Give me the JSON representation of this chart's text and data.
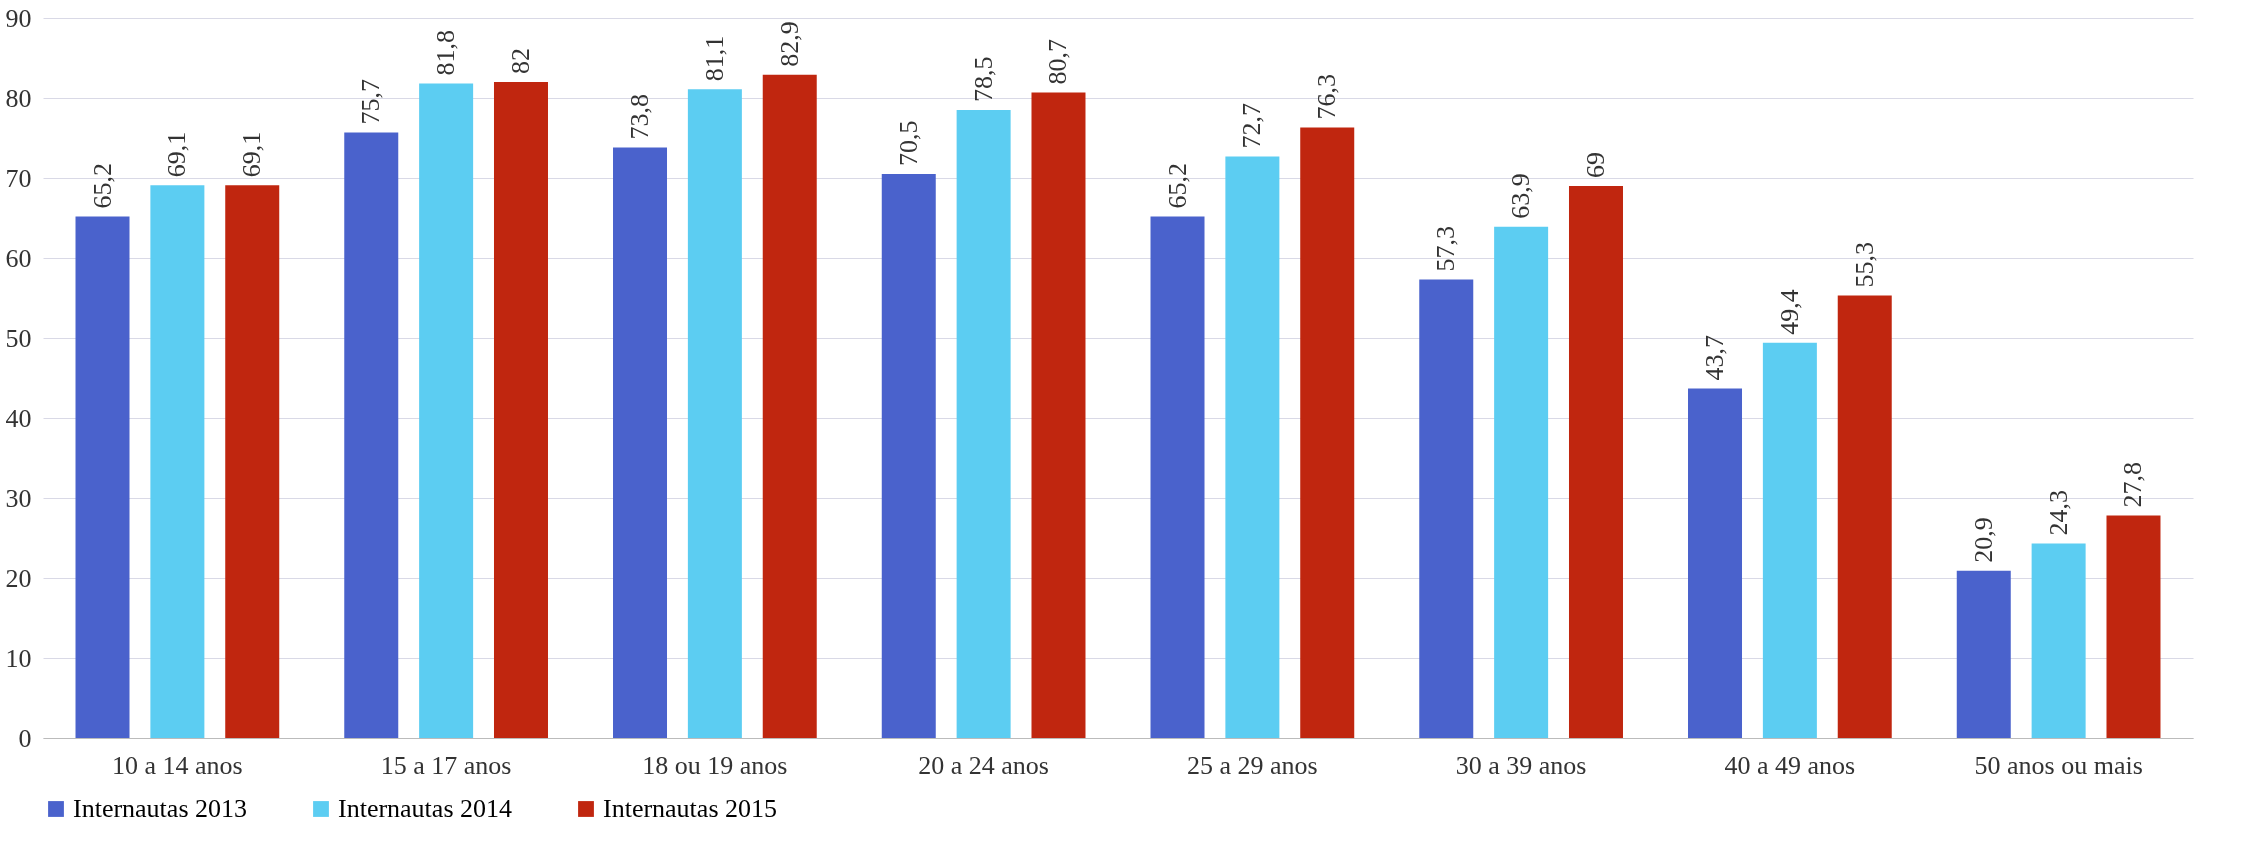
{
  "chart_data": {
    "type": "bar",
    "categories": [
      "10 a 14 anos",
      "15 a 17 anos",
      "18 ou 19 anos",
      "20 a 24 anos",
      "25 a 29 anos",
      "30 a 39 anos",
      "40 a 49 anos",
      "50 anos ou mais"
    ],
    "series": [
      {
        "name": "Internautas 2013",
        "color": "#4a62cc",
        "values": [
          65.2,
          75.7,
          73.8,
          70.5,
          65.2,
          57.3,
          43.7,
          20.9
        ],
        "value_labels": [
          "65,2",
          "75,7",
          "73,8",
          "70,5",
          "65,2",
          "57,3",
          "43,7",
          "20,9"
        ]
      },
      {
        "name": "Internautas 2014",
        "color": "#5ccdf2",
        "values": [
          69.1,
          81.8,
          81.1,
          78.5,
          72.7,
          63.9,
          49.4,
          24.3
        ],
        "value_labels": [
          "69,1",
          "81,8",
          "81,1",
          "78,5",
          "72,7",
          "63,9",
          "49,4",
          "24,3"
        ]
      },
      {
        "name": "Internautas 2015",
        "color": "#c0260f",
        "values": [
          69.1,
          82,
          82.9,
          80.7,
          76.3,
          69,
          55.3,
          27.8
        ],
        "value_labels": [
          "69,1",
          "82",
          "82,9",
          "80,7",
          "76,3",
          "69",
          "55,3",
          "27,8"
        ]
      }
    ],
    "ylim": [
      0,
      90
    ],
    "yticks": [
      0,
      10,
      20,
      30,
      40,
      50,
      60,
      70,
      80,
      90
    ],
    "grid": "y",
    "legend": "bottom"
  }
}
